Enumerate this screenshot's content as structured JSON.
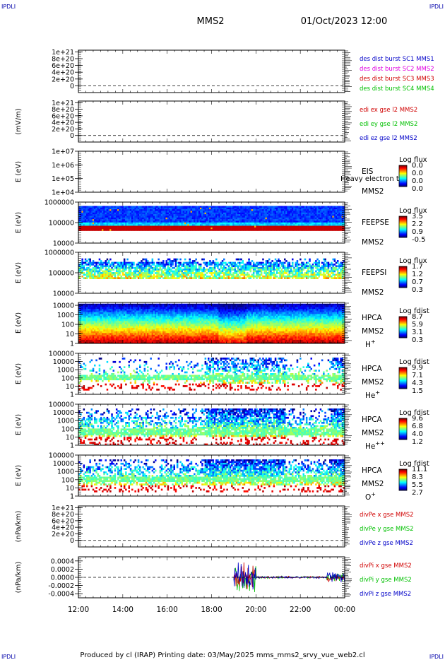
{
  "header": {
    "corner_left": "IPDLI",
    "corner_right": "IPDLI",
    "mission": "MMS2",
    "datetime": "01/Oct/2023 12:00"
  },
  "footer": {
    "text": "Produced by cl (IRAP)   Printing date: 03/May/2025   mms_mms2_srvy_vue_web2.cl",
    "corner_left": "IPDLI",
    "corner_right": "IPDLI"
  },
  "time_axis": {
    "start_hour": 12,
    "end_hour": 24,
    "tick_labels": [
      "12:00",
      "14:00",
      "16:00",
      "18:00",
      "20:00",
      "22:00",
      "00:00"
    ]
  },
  "chart_data": [
    {
      "type": "line",
      "id": "p1",
      "ylabel": "",
      "ylim": [
        -2e+20,
        1.05e+21
      ],
      "ticks": [
        {
          "v": 1e+21,
          "label": "1e+21"
        },
        {
          "v": 8e+20,
          "label": "8e+20"
        },
        {
          "v": 6e+20,
          "label": "6e+20"
        },
        {
          "v": 4e+20,
          "label": "4e+20"
        },
        {
          "v": 2e+20,
          "label": "2e+20"
        },
        {
          "v": 0,
          "label": "0"
        }
      ],
      "zero_line": 0,
      "legend": [
        {
          "text": "des dist burst SC1 MMS1",
          "color": "#0000c8"
        },
        {
          "text": "des dist burst SC2 MMS2",
          "color": "#e000e0"
        },
        {
          "text": "des dist burst SC3 MMS3",
          "color": "#d00000"
        },
        {
          "text": "des dist burst SC4 MMS4",
          "color": "#00c000"
        }
      ]
    },
    {
      "type": "line",
      "id": "p2",
      "ylabel": "(mV/m)",
      "ylim": [
        -2e+20,
        1.05e+21
      ],
      "ticks": [
        {
          "v": 1e+21,
          "label": "1e+21"
        },
        {
          "v": 8e+20,
          "label": "8e+20"
        },
        {
          "v": 6e+20,
          "label": "6e+20"
        },
        {
          "v": 4e+20,
          "label": "4e+20"
        },
        {
          "v": 2e+20,
          "label": "2e+20"
        },
        {
          "v": 0,
          "label": "0"
        }
      ],
      "zero_line": 0,
      "legend": [
        {
          "text": "edi ex gse l2 MMS2",
          "color": "#d00000"
        },
        {
          "text": "edi ey gse l2 MMS2",
          "color": "#00c000"
        },
        {
          "text": "edi ez gse l2 MMS2",
          "color": "#0000c8"
        }
      ]
    },
    {
      "type": "heatmap",
      "id": "p3",
      "ylabel": "E (eV)",
      "scale": "log",
      "ylim": [
        10000,
        10000000
      ],
      "ticks": [
        {
          "v": 10000000,
          "label": "1e+07"
        },
        {
          "v": 1000000,
          "label": "1e+06"
        },
        {
          "v": 100000,
          "label": "1e+05"
        },
        {
          "v": 10000,
          "label": "1e+04"
        }
      ],
      "instrument": [
        "EIS",
        "MMS2"
      ],
      "overlay_text": "Heavy electron to",
      "colorbar": {
        "title": "Log flux",
        "labels": [
          "0.0",
          "0.0",
          "0.0",
          "0.0"
        ]
      },
      "data": null
    },
    {
      "type": "heatmap",
      "id": "p4",
      "ylabel": "E (eV)",
      "scale": "log",
      "ylim": [
        10000,
        1000000
      ],
      "ticks": [
        {
          "v": 1000000,
          "label": "1000000"
        },
        {
          "v": 100000,
          "label": "100000"
        },
        {
          "v": 10000,
          "label": "10000"
        }
      ],
      "instrument": [
        "FEEPSE",
        "MMS2"
      ],
      "colorbar": {
        "title": "Log flux",
        "labels": [
          "3.5",
          "2.2",
          "0.9",
          "-0.5"
        ]
      },
      "data": {
        "coverage_start_hour": 12,
        "coverage_end_hour": 24,
        "emin": 40000,
        "emax": 650000
      }
    },
    {
      "type": "heatmap",
      "id": "p5",
      "ylabel": "E (eV)",
      "scale": "log",
      "ylim": [
        10000,
        1000000
      ],
      "ticks": [
        {
          "v": 1000000,
          "label": "1000000"
        },
        {
          "v": 100000,
          "label": "100000"
        },
        {
          "v": 10000,
          "label": "10000"
        }
      ],
      "instrument": [
        "FEEPSI",
        "MMS2"
      ],
      "colorbar": {
        "title": "Log flux",
        "labels": [
          "1.7",
          "1.2",
          "0.7",
          "0.3"
        ]
      },
      "data": {
        "coverage_start_hour": 12,
        "coverage_end_hour": 24,
        "emin": 50000,
        "emax": 500000
      }
    },
    {
      "type": "heatmap",
      "id": "p6",
      "ylabel": "E (eV)",
      "scale": "log",
      "ylim": [
        1,
        20000
      ],
      "ticks": [
        {
          "v": 10000,
          "label": "10000"
        },
        {
          "v": 1000,
          "label": "1000"
        },
        {
          "v": 100,
          "label": "100"
        },
        {
          "v": 10,
          "label": "10"
        },
        {
          "v": 1,
          "label": "1"
        }
      ],
      "instrument": [
        "HPCA",
        "MMS2"
      ],
      "species": {
        "base": "H",
        "sup": "+"
      },
      "colorbar": {
        "title": "Log fdist",
        "labels": [
          "8.7",
          "5.9",
          "3.1",
          "0.3"
        ]
      },
      "data": {
        "coverage_start_hour": 12,
        "coverage_end_hour": 24,
        "emin": 1,
        "emax": 15000
      }
    },
    {
      "type": "heatmap",
      "id": "p7",
      "ylabel": "E (eV)",
      "scale": "log",
      "ylim": [
        1,
        100000
      ],
      "ticks": [
        {
          "v": 100000,
          "label": "100000"
        },
        {
          "v": 10000,
          "label": "10000"
        },
        {
          "v": 1000,
          "label": "1000"
        },
        {
          "v": 100,
          "label": "100"
        },
        {
          "v": 10,
          "label": "10"
        },
        {
          "v": 1,
          "label": "1"
        }
      ],
      "instrument": [
        "HPCA",
        "MMS2"
      ],
      "species": {
        "base": "He",
        "sup": "+"
      },
      "colorbar": {
        "title": "Log fdist",
        "labels": [
          "9.9",
          "7.1",
          "4.3",
          "1.5"
        ]
      },
      "data": {
        "coverage_start_hour": 12,
        "coverage_end_hour": 24,
        "emin": 3,
        "emax": 30000
      }
    },
    {
      "type": "heatmap",
      "id": "p8",
      "ylabel": "E (eV)",
      "scale": "log",
      "ylim": [
        1,
        100000
      ],
      "ticks": [
        {
          "v": 100000,
          "label": "100000"
        },
        {
          "v": 10000,
          "label": "10000"
        },
        {
          "v": 1000,
          "label": "1000"
        },
        {
          "v": 100,
          "label": "100"
        },
        {
          "v": 10,
          "label": "10"
        },
        {
          "v": 1,
          "label": "1"
        }
      ],
      "instrument": [
        "HPCA",
        "MMS2"
      ],
      "species": {
        "base": "He",
        "sup": "++"
      },
      "colorbar": {
        "title": "Log fdist",
        "labels": [
          "9.6",
          "6.8",
          "4.0",
          "1.2"
        ]
      },
      "data": {
        "coverage_start_hour": 12,
        "coverage_end_hour": 24,
        "emin": 1,
        "emax": 30000
      }
    },
    {
      "type": "heatmap",
      "id": "p9",
      "ylabel": "E (eV)",
      "scale": "log",
      "ylim": [
        1,
        100000
      ],
      "ticks": [
        {
          "v": 100000,
          "label": "100000"
        },
        {
          "v": 10000,
          "label": "10000"
        },
        {
          "v": 1000,
          "label": "1000"
        },
        {
          "v": 100,
          "label": "100"
        },
        {
          "v": 10,
          "label": "10"
        },
        {
          "v": 1,
          "label": "1"
        }
      ],
      "instrument": [
        "HPCA",
        "MMS2"
      ],
      "species": {
        "base": "O",
        "sup": "+"
      },
      "colorbar": {
        "title": "Log fdist",
        "labels": [
          "11.1",
          "8.3",
          "5.5",
          "2.7"
        ]
      },
      "data": {
        "coverage_start_hour": 12,
        "coverage_end_hour": 24,
        "emin": 3,
        "emax": 30000
      }
    },
    {
      "type": "line",
      "id": "p10",
      "ylabel": "(nPa/km)",
      "ylim": [
        -2e+20,
        1.05e+21
      ],
      "ticks": [
        {
          "v": 1e+21,
          "label": "1e+21"
        },
        {
          "v": 8e+20,
          "label": "8e+20"
        },
        {
          "v": 6e+20,
          "label": "6e+20"
        },
        {
          "v": 4e+20,
          "label": "4e+20"
        },
        {
          "v": 2e+20,
          "label": "2e+20"
        },
        {
          "v": 0,
          "label": "0"
        }
      ],
      "zero_line": 0,
      "legend": [
        {
          "text": "divPe x gse MMS2",
          "color": "#d00000"
        },
        {
          "text": "divPe y gse MMS2",
          "color": "#00c000"
        },
        {
          "text": "divPe z gse MMS2",
          "color": "#0000c8"
        }
      ]
    },
    {
      "type": "line",
      "id": "p11",
      "ylabel": "(nPa/km)",
      "ylim": [
        -0.0005,
        0.0005
      ],
      "ticks": [
        {
          "v": 0.0004,
          "label": "0.0004"
        },
        {
          "v": 0.0002,
          "label": "0.0002"
        },
        {
          "v": 0,
          "label": "0.0000"
        },
        {
          "v": -0.0002,
          "label": "-0.0002"
        },
        {
          "v": -0.0004,
          "label": "-0.0004"
        }
      ],
      "zero_line": 0,
      "legend": [
        {
          "text": "divPi x gse MMS2",
          "color": "#d00000"
        },
        {
          "text": "divPi y gse MMS2",
          "color": "#00c000"
        },
        {
          "text": "divPi z gse MMS2",
          "color": "#0000c8"
        }
      ],
      "series_coverage_hours": [
        19.0,
        24.0
      ],
      "series_amplitude_peak": 0.0004
    }
  ]
}
